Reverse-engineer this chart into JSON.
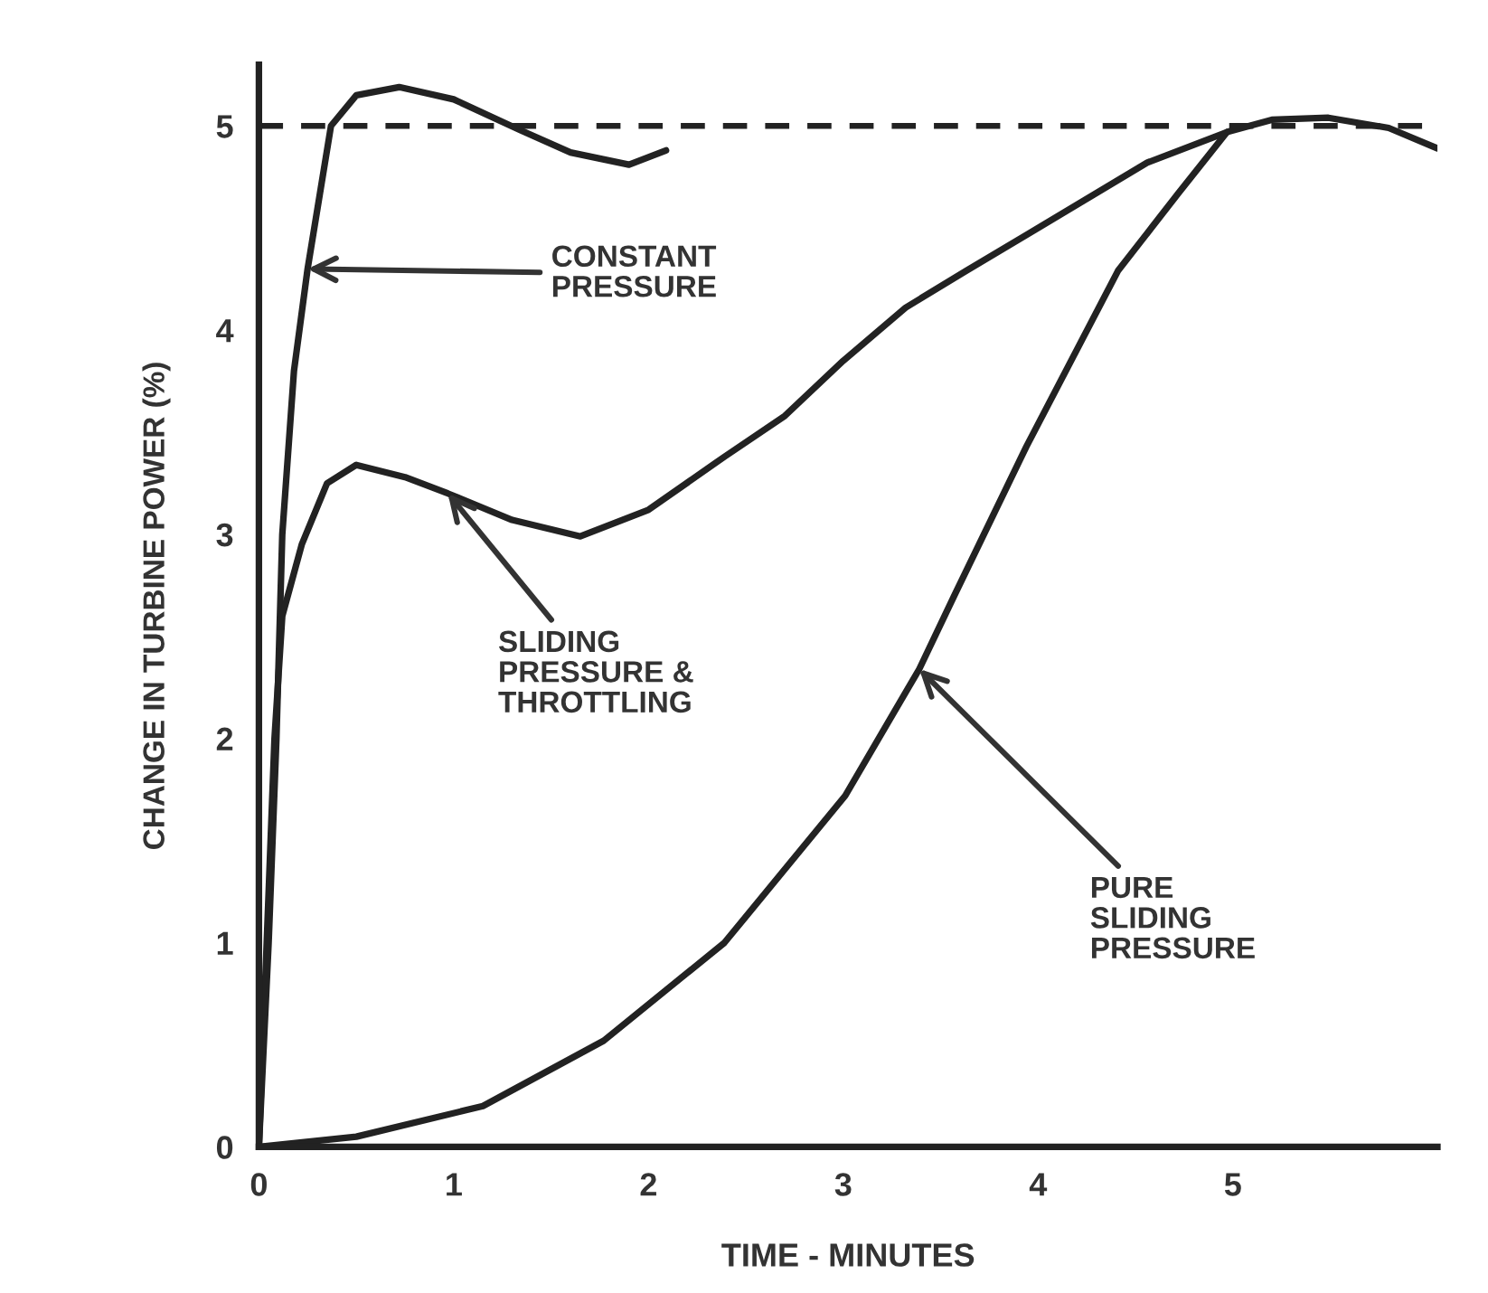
{
  "chart_data": {
    "type": "line",
    "xlabel": "TIME - MINUTES",
    "ylabel": "CHANGE IN TURBINE POWER (%)",
    "xlim": [
      0,
      6.05
    ],
    "ylim": [
      0,
      5.3
    ],
    "xticks": [
      0,
      1,
      2,
      3,
      4,
      5
    ],
    "yticks": [
      0,
      1,
      2,
      3,
      4,
      5
    ],
    "grid": false,
    "line_style": "solid",
    "marker": "none",
    "series": [
      {
        "color": "#222222",
        "x": [
          0,
          0.05,
          0.09,
          0.12,
          0.18,
          0.25,
          0.37,
          0.5,
          0.72,
          1.0,
          1.34,
          1.6,
          1.9,
          2.09
        ],
        "values": [
          0,
          1,
          2,
          3,
          3.8,
          4.3,
          5.0,
          5.15,
          5.19,
          5.13,
          4.98,
          4.87,
          4.81,
          4.88
        ]
      },
      {
        "color": "#222222",
        "x": [
          0,
          0.04,
          0.08,
          0.12,
          0.22,
          0.35,
          0.5,
          0.75,
          0.97,
          1.3,
          1.65,
          2.0,
          2.39,
          2.7,
          3.0,
          3.32,
          3.63,
          4.0,
          4.56,
          4.97,
          5.2,
          5.49,
          5.8,
          6.05
        ],
        "values": [
          0,
          1,
          2,
          2.6,
          2.95,
          3.25,
          3.34,
          3.28,
          3.2,
          3.07,
          2.99,
          3.12,
          3.38,
          3.58,
          3.85,
          4.11,
          4.29,
          4.5,
          4.82,
          4.97,
          5.03,
          5.04,
          4.99,
          4.89
        ]
      },
      {
        "color": "#222222",
        "x": [
          0,
          0.5,
          1.15,
          1.77,
          2.39,
          3.01,
          3.39,
          3.57,
          3.94,
          4.41,
          4.72,
          4.97
        ],
        "values": [
          0,
          0.05,
          0.2,
          0.52,
          1.0,
          1.72,
          2.34,
          2.7,
          3.43,
          4.29,
          4.67,
          4.97
        ]
      }
    ],
    "ref_lines": [
      {
        "axis": "y",
        "value": 5,
        "color": "#222222",
        "line_style": "dashed"
      }
    ],
    "annotations": [
      {
        "text": "CONSTANT\nPRESSURE",
        "x": 0.25,
        "y": 4.3
      },
      {
        "text": "SLIDING\nPRESSURE &\nTHROTTLING",
        "x": 0.97,
        "y": 3.2
      },
      {
        "text": "PURE\nSLIDING\nPRESSURE",
        "x": 3.39,
        "y": 2.34
      }
    ]
  }
}
